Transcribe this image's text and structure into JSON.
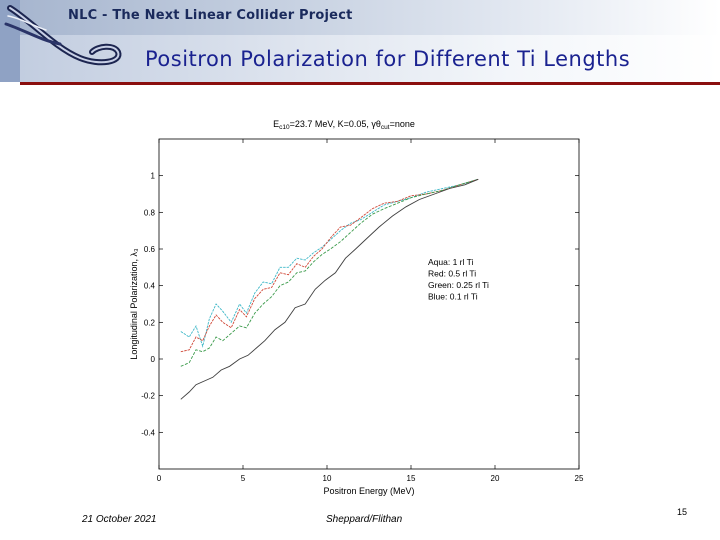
{
  "slide": {
    "project_title": "NLC - The Next Linear Collider Project",
    "title": "Positron Polarization for Different Ti Lengths",
    "date": "21 October 2021",
    "authors": "Sheppard/Flithan",
    "page_number": "15",
    "accent_color": "#8a0e0e",
    "title_color": "#1a2290"
  },
  "chart_data": {
    "type": "line",
    "title": "E_c10=23.7 MeV, K=0.05, γθ_cut=none",
    "title_parts": {
      "pre": "E",
      "sub1": "c10",
      "mid": "=23.7 MeV, K=0.05, γθ",
      "sub2": "cut",
      "post": "=none"
    },
    "xlabel": "Positron Energy (MeV)",
    "ylabel": "Longitudinal Polarization, λ₃",
    "xlim": [
      0,
      25
    ],
    "ylim": [
      -0.6,
      1.2
    ],
    "x_ticks": [
      0,
      5,
      10,
      15,
      20,
      25
    ],
    "y_ticks": [
      -0.4,
      -0.2,
      0,
      0.2,
      0.4,
      0.6,
      0.8,
      1
    ],
    "x_tick_labels": [
      "0",
      "5",
      "10",
      "15",
      "20",
      "25"
    ],
    "y_tick_labels": [
      "-0.4",
      "-0.2",
      "0",
      "0.2",
      "0.4",
      "0.6",
      "0.8",
      "1"
    ],
    "grid": false,
    "legend_position": "right",
    "series": [
      {
        "name": "Aqua: 1 rl Ti",
        "color": "#3fb8c8",
        "x": [
          1.3,
          1.8,
          2.2,
          2.6,
          3.0,
          3.4,
          3.8,
          4.3,
          4.8,
          5.2,
          5.7,
          6.2,
          6.7,
          7.2,
          7.7,
          8.2,
          8.7,
          9.2,
          9.7,
          10.2,
          10.8,
          11.4,
          12.0,
          12.7,
          13.4,
          14.2,
          15.0,
          15.9,
          16.9,
          17.9,
          19.0
        ],
        "y": [
          0.15,
          0.12,
          0.18,
          0.07,
          0.22,
          0.3,
          0.26,
          0.2,
          0.3,
          0.25,
          0.36,
          0.42,
          0.41,
          0.5,
          0.5,
          0.55,
          0.54,
          0.58,
          0.61,
          0.65,
          0.7,
          0.74,
          0.76,
          0.8,
          0.84,
          0.86,
          0.88,
          0.91,
          0.93,
          0.95,
          0.98
        ]
      },
      {
        "name": "Red: 0.5 rl Ti",
        "color": "#d04a3a",
        "x": [
          1.3,
          1.8,
          2.2,
          2.6,
          3.0,
          3.4,
          3.8,
          4.3,
          4.8,
          5.2,
          5.7,
          6.2,
          6.7,
          7.2,
          7.7,
          8.2,
          8.7,
          9.2,
          9.7,
          10.2,
          10.8,
          11.4,
          12.0,
          12.7,
          13.4,
          14.2,
          15.0,
          15.9,
          16.9,
          17.9,
          19.0
        ],
        "y": [
          0.04,
          0.05,
          0.12,
          0.1,
          0.18,
          0.24,
          0.2,
          0.17,
          0.27,
          0.23,
          0.33,
          0.38,
          0.39,
          0.47,
          0.46,
          0.52,
          0.5,
          0.56,
          0.6,
          0.66,
          0.72,
          0.73,
          0.77,
          0.82,
          0.85,
          0.86,
          0.89,
          0.9,
          0.92,
          0.95,
          0.98
        ]
      },
      {
        "name": "Green: 0.25 rl Ti",
        "color": "#3a9a4a",
        "x": [
          1.3,
          1.8,
          2.2,
          2.6,
          3.0,
          3.4,
          3.8,
          4.3,
          4.8,
          5.2,
          5.7,
          6.2,
          6.7,
          7.2,
          7.7,
          8.2,
          8.7,
          9.2,
          9.7,
          10.2,
          10.8,
          11.4,
          12.0,
          12.7,
          13.4,
          14.2,
          15.0,
          15.9,
          16.9,
          17.9,
          19.0
        ],
        "y": [
          -0.04,
          -0.02,
          0.05,
          0.04,
          0.06,
          0.12,
          0.1,
          0.14,
          0.18,
          0.17,
          0.25,
          0.3,
          0.34,
          0.4,
          0.42,
          0.47,
          0.48,
          0.53,
          0.57,
          0.6,
          0.64,
          0.69,
          0.74,
          0.79,
          0.82,
          0.85,
          0.88,
          0.9,
          0.92,
          0.95,
          0.98
        ]
      },
      {
        "name": "Blue: 0.1 rl Ti",
        "color": "#404040",
        "x": [
          1.3,
          1.8,
          2.2,
          2.7,
          3.2,
          3.7,
          4.2,
          4.8,
          5.3,
          5.8,
          6.3,
          6.9,
          7.5,
          8.1,
          8.7,
          9.3,
          9.9,
          10.5,
          11.1,
          11.7,
          12.4,
          13.1,
          13.9,
          14.7,
          15.5,
          16.4,
          17.3,
          18.2,
          19.0
        ],
        "y": [
          -0.22,
          -0.18,
          -0.14,
          -0.12,
          -0.1,
          -0.06,
          -0.04,
          0.0,
          0.02,
          0.06,
          0.1,
          0.16,
          0.2,
          0.28,
          0.3,
          0.38,
          0.43,
          0.47,
          0.55,
          0.6,
          0.66,
          0.72,
          0.78,
          0.83,
          0.87,
          0.9,
          0.93,
          0.95,
          0.98
        ]
      }
    ]
  }
}
